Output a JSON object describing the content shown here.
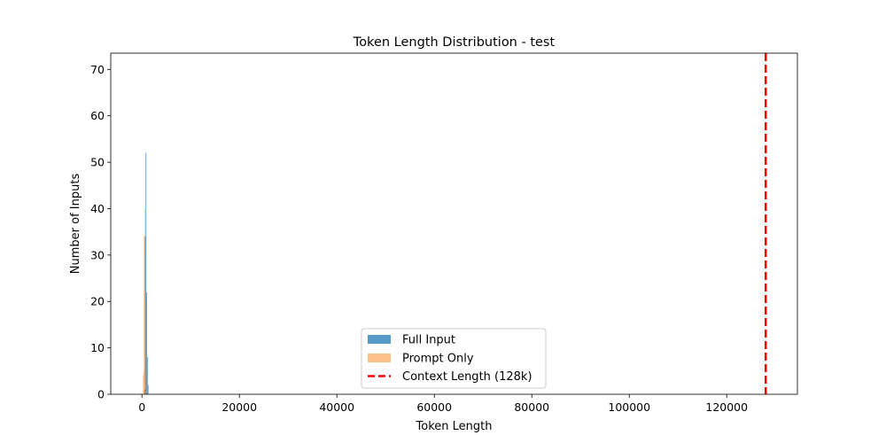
{
  "chart_data": {
    "type": "bar",
    "title": "Token Length Distribution - test",
    "xlabel": "Token Length",
    "ylabel": "Number of Inputs",
    "xlim": [
      -6400,
      134500
    ],
    "ylim": [
      0,
      73.5
    ],
    "xticks": [
      0,
      20000,
      40000,
      60000,
      80000,
      100000,
      120000
    ],
    "yticks": [
      0,
      10,
      20,
      30,
      40,
      50,
      60,
      70
    ],
    "grid": false,
    "legend_position": "lower-center",
    "series": [
      {
        "name": "Full Input",
        "color": "#1f77b4",
        "opacity": 0.75,
        "bins": [
          {
            "x0": 300,
            "x1": 450,
            "count": 0
          },
          {
            "x0": 450,
            "x1": 600,
            "count": 1
          },
          {
            "x0": 600,
            "x1": 750,
            "count": 34
          },
          {
            "x0": 750,
            "x1": 900,
            "count": 52
          },
          {
            "x0": 900,
            "x1": 1050,
            "count": 22
          },
          {
            "x0": 1050,
            "x1": 1200,
            "count": 8
          },
          {
            "x0": 1200,
            "x1": 1350,
            "count": 2
          }
        ]
      },
      {
        "name": "Prompt Only",
        "color": "#ff7f0e",
        "opacity": 0.5,
        "bins": [
          {
            "x0": 200,
            "x1": 300,
            "count": 4
          },
          {
            "x0": 300,
            "x1": 400,
            "count": 5
          },
          {
            "x0": 400,
            "x1": 500,
            "count": 34
          },
          {
            "x0": 500,
            "x1": 600,
            "count": 40
          },
          {
            "x0": 600,
            "x1": 700,
            "count": 30
          },
          {
            "x0": 700,
            "x1": 800,
            "count": 20
          },
          {
            "x0": 800,
            "x1": 900,
            "count": 3
          }
        ]
      }
    ],
    "reference_line": {
      "name": "Context Length (128k)",
      "x": 128000,
      "color": "#ff0000",
      "style": "dashed"
    }
  }
}
